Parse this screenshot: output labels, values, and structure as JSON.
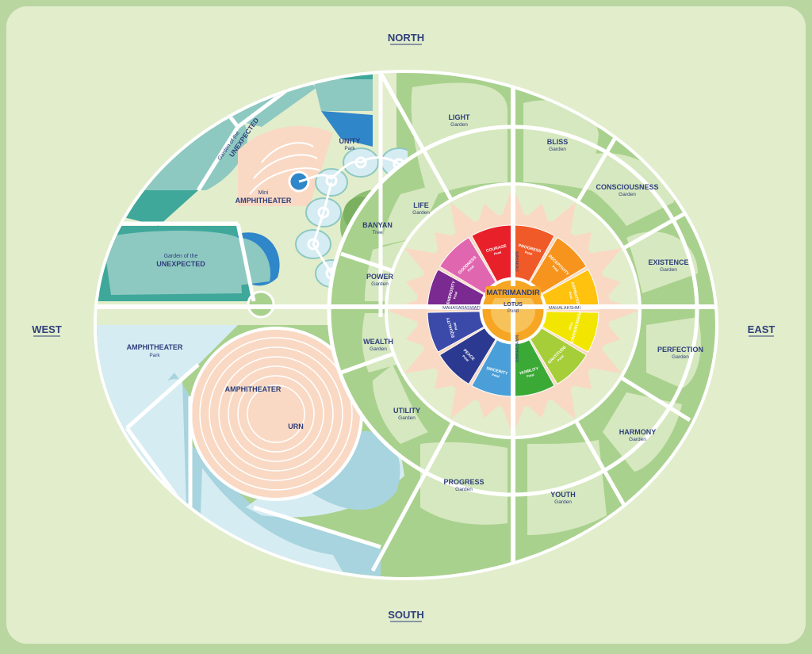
{
  "directions": {
    "north": "NORTH",
    "south": "SOUTH",
    "west": "WEST",
    "east": "EAST"
  },
  "center": {
    "title": "MATRIMANDIR",
    "pond": "LOTUS",
    "pond_sub": "Pond"
  },
  "axis_labels": {
    "west": "MAHASARASWATI",
    "east": "MAHALAKSHMI",
    "north": "MAHAKALI",
    "south": "MAHESHWARI"
  },
  "petals": [
    {
      "name": "PROGRESS",
      "sub": "Petal",
      "color": "#f05a28"
    },
    {
      "name": "RECEPTIVITY",
      "sub": "Petal",
      "color": "#f7941d"
    },
    {
      "name": "ASPIRATION",
      "sub": "Petal",
      "color": "#ffc20e"
    },
    {
      "name": "PERSEVERANCE",
      "sub": "Petal",
      "color": "#f2e600"
    },
    {
      "name": "GRATITUDE",
      "sub": "Petal",
      "color": "#a6ce39"
    },
    {
      "name": "HUMILITY",
      "sub": "Petal",
      "color": "#3aa935"
    },
    {
      "name": "SINCERITY",
      "sub": "Petal",
      "color": "#4a9fd8"
    },
    {
      "name": "PEACE",
      "sub": "Petal",
      "color": "#2b3990"
    },
    {
      "name": "EQUALITY",
      "sub": "Petal",
      "color": "#3b4aa8"
    },
    {
      "name": "GENEROSITY",
      "sub": "Petal",
      "color": "#7a2a90"
    },
    {
      "name": "GOODNESS",
      "sub": "Petal",
      "color": "#e066b0"
    },
    {
      "name": "COURAGE",
      "sub": "Petal",
      "color": "#e8202a"
    }
  ],
  "gardens": {
    "light": {
      "name": "LIGHT",
      "sub": "Garden"
    },
    "bliss": {
      "name": "BLISS",
      "sub": "Garden"
    },
    "consciousness": {
      "name": "CONSCIOUSNESS",
      "sub": "Garden"
    },
    "existence": {
      "name": "EXISTENCE",
      "sub": "Garden"
    },
    "perfection": {
      "name": "PERFECTION",
      "sub": "Garden"
    },
    "harmony": {
      "name": "HARMONY",
      "sub": "Garden"
    },
    "youth": {
      "name": "YOUTH",
      "sub": "Garden"
    },
    "progress": {
      "name": "PROGRESS",
      "sub": "Garden"
    },
    "utility": {
      "name": "UTILITY",
      "sub": "Garden"
    },
    "wealth": {
      "name": "WEALTH",
      "sub": "Garden"
    },
    "power": {
      "name": "POWER",
      "sub": "Garden"
    },
    "life": {
      "name": "LIFE",
      "sub": "Garden"
    }
  },
  "features": {
    "banyan": {
      "name": "BANYAN",
      "sub": "Tree"
    },
    "unity": {
      "name": "UNITY",
      "sub": "Park"
    },
    "mini_amph": {
      "name": "Mini",
      "sub": "AMPHITHEATER"
    },
    "unexpected_top": {
      "line1": "Garden of the",
      "line2": "UNEXPECTED"
    },
    "unexpected_left": {
      "line1": "Garden of the",
      "line2": "UNEXPECTED"
    },
    "amph_park": {
      "name": "AMPHITHEATER",
      "sub": "Park"
    },
    "amphitheater": {
      "name": "AMPHITHEATER"
    },
    "urn": {
      "name": "URN"
    }
  },
  "colors": {
    "background": "#b9d6a0",
    "panel": "#e2edcc",
    "garden": "#a9d18e",
    "teal": "#3fa89a",
    "light_blue": "#d6ecf3",
    "peach": "#f9d9c4"
  }
}
